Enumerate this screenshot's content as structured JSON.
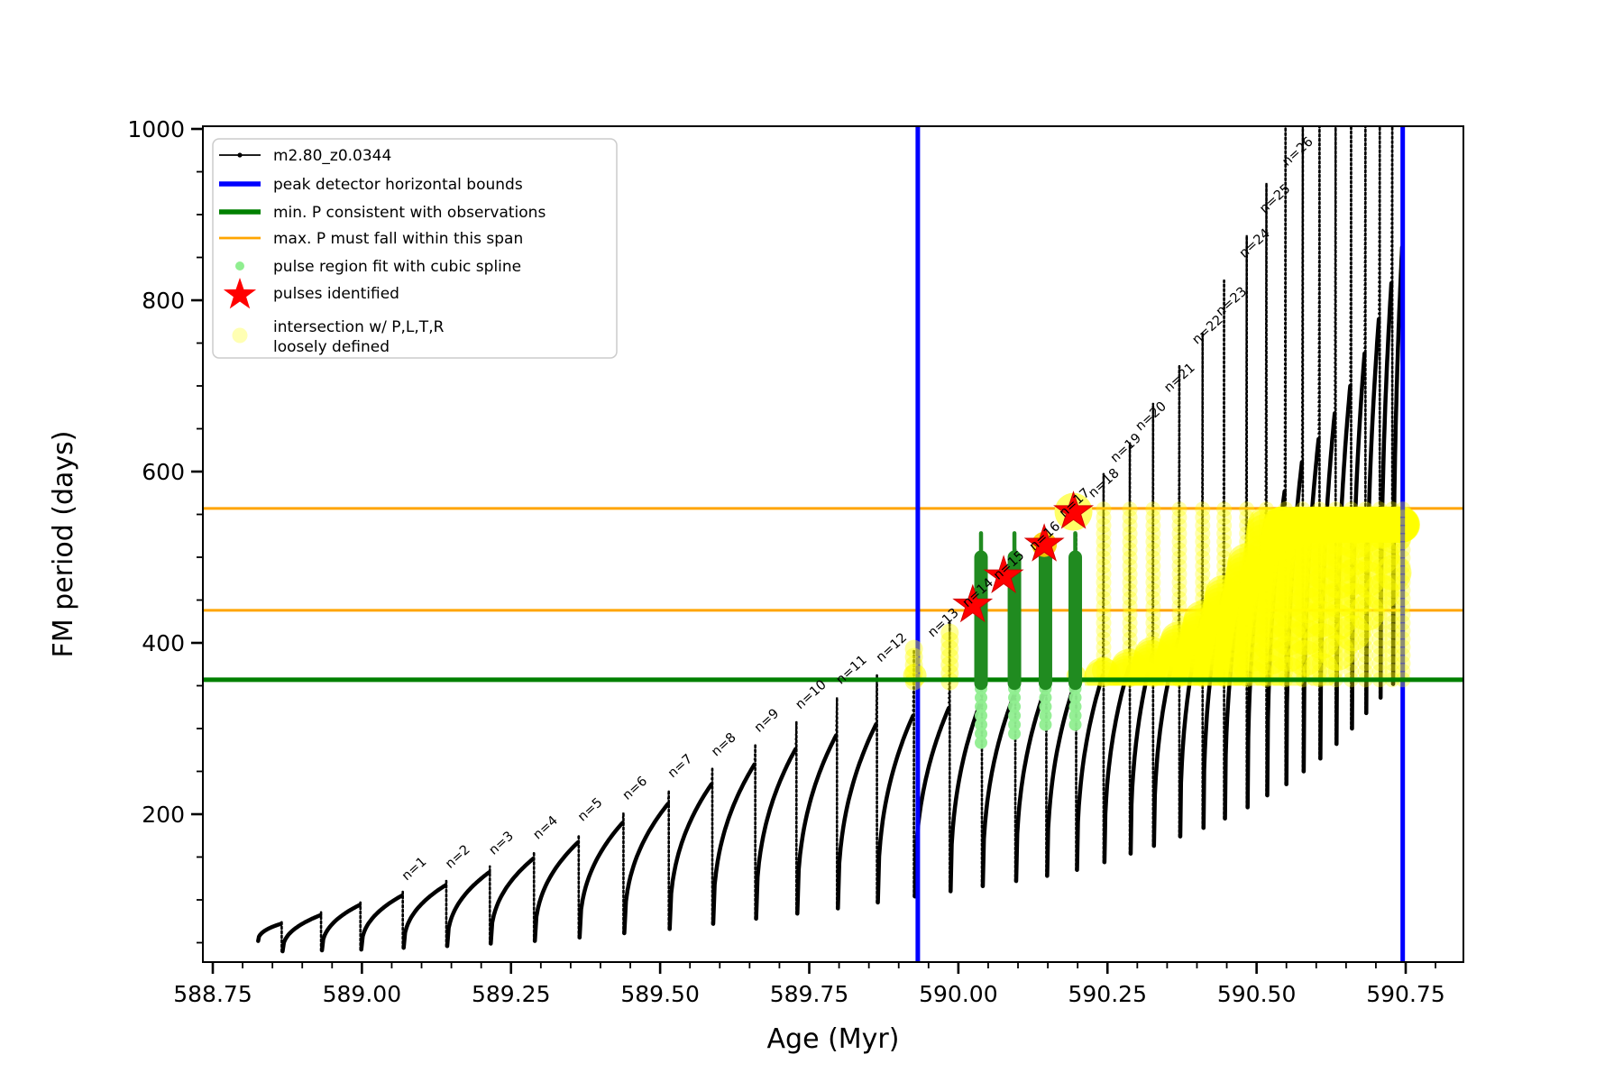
{
  "chart_data": {
    "type": "line",
    "title": "",
    "xlabel": "Age (Myr)",
    "ylabel": "FM period (days)",
    "xlim": [
      588.733,
      590.846
    ],
    "ylim": [
      27,
      1003
    ],
    "x_major_ticks": [
      "588.75",
      "589.00",
      "589.25",
      "589.50",
      "589.75",
      "590.00",
      "590.25",
      "590.50",
      "590.75"
    ],
    "x_major_values": [
      588.75,
      589.0,
      589.25,
      589.5,
      589.75,
      590.0,
      590.25,
      590.5,
      590.75
    ],
    "x_minor_step": 0.05,
    "y_major_ticks": [
      "200",
      "400",
      "600",
      "800",
      "1000"
    ],
    "y_major_values": [
      200,
      400,
      600,
      800,
      1000
    ],
    "y_minor_step": 50,
    "series_label": "m2.80_z0.0344",
    "peak_detector_bounds_x": [
      589.932,
      590.745
    ],
    "min_P_line": 357,
    "max_P_span": [
      438,
      557
    ],
    "pulses": [
      {
        "n": 0,
        "age": 588.864,
        "start": 588.826,
        "min": 52,
        "bump": 72,
        "tip": 76
      },
      {
        "n": 0,
        "age": 588.93,
        "min": 40,
        "bump": 82,
        "tip": 86
      },
      {
        "n": 0,
        "age": 588.996,
        "min": 41,
        "bump": 94,
        "tip": 98
      },
      {
        "n": 1,
        "age": 589.067,
        "min": 42,
        "bump": 105,
        "tip": 110
      },
      {
        "n": 2,
        "age": 589.14,
        "min": 44,
        "bump": 117,
        "tip": 123
      },
      {
        "n": 3,
        "age": 589.213,
        "min": 46,
        "bump": 132,
        "tip": 139
      },
      {
        "n": 4,
        "age": 589.287,
        "min": 49,
        "bump": 148,
        "tip": 156
      },
      {
        "n": 5,
        "age": 589.362,
        "min": 52,
        "bump": 167,
        "tip": 177
      },
      {
        "n": 6,
        "age": 589.437,
        "min": 56,
        "bump": 190,
        "tip": 202
      },
      {
        "n": 7,
        "age": 589.513,
        "min": 61,
        "bump": 212,
        "tip": 228
      },
      {
        "n": 8,
        "age": 589.586,
        "min": 66,
        "bump": 235,
        "tip": 253
      },
      {
        "n": 9,
        "age": 589.658,
        "min": 72,
        "bump": 258,
        "tip": 281
      },
      {
        "n": 10,
        "age": 589.727,
        "min": 78,
        "bump": 276,
        "tip": 308
      },
      {
        "n": 11,
        "age": 589.795,
        "min": 84,
        "bump": 292,
        "tip": 337
      },
      {
        "n": 12,
        "age": 589.862,
        "min": 90,
        "bump": 305,
        "tip": 362
      },
      {
        "n": 13,
        "age": 589.924,
        "min": 97,
        "bump": 315,
        "tip": 393
      },
      {
        "n": 14,
        "age": 589.984,
        "min": 104,
        "bump": 324,
        "tip": 425
      },
      {
        "n": 15,
        "age": 590.038,
        "min": 110,
        "bump": 332,
        "tip": 500
      },
      {
        "n": 16,
        "age": 590.094,
        "min": 116,
        "bump": 340,
        "tip": 510
      },
      {
        "n": 17,
        "age": 590.146,
        "min": 122,
        "bump": 347,
        "tip": 518
      },
      {
        "n": 18,
        "age": 590.196,
        "min": 128,
        "bump": 354,
        "tip": 528
      },
      {
        "n": 19,
        "age": 590.242,
        "min": 135,
        "bump": 362,
        "tip": 597
      },
      {
        "n": 20,
        "age": 590.286,
        "min": 144,
        "bump": 372,
        "tip": 633
      },
      {
        "n": 21,
        "age": 590.325,
        "min": 154,
        "bump": 386,
        "tip": 679
      },
      {
        "n": 22,
        "age": 590.369,
        "min": 163,
        "bump": 404,
        "tip": 723
      },
      {
        "n": 23,
        "age": 590.408,
        "min": 174,
        "bump": 428,
        "tip": 762
      },
      {
        "n": 24,
        "age": 590.444,
        "min": 184,
        "bump": 458,
        "tip": 823
      },
      {
        "n": 25,
        "age": 590.482,
        "min": 195,
        "bump": 495,
        "tip": 876
      },
      {
        "n": 26,
        "age": 590.515,
        "min": 208,
        "bump": 540,
        "tip": 937
      },
      {
        "n": 0,
        "age": 590.547,
        "min": 222,
        "bump": 577,
        "tip": 1100
      },
      {
        "n": 0,
        "age": 590.576,
        "min": 235,
        "bump": 611,
        "tip": 1100
      },
      {
        "n": 0,
        "age": 590.604,
        "min": 250,
        "bump": 638,
        "tip": 1100
      },
      {
        "n": 0,
        "age": 590.631,
        "min": 265,
        "bump": 668,
        "tip": 1100
      },
      {
        "n": 0,
        "age": 590.657,
        "min": 282,
        "bump": 700,
        "tip": 1100
      },
      {
        "n": 0,
        "age": 590.681,
        "min": 300,
        "bump": 738,
        "tip": 1100
      },
      {
        "n": 0,
        "age": 590.705,
        "min": 318,
        "bump": 778,
        "tip": 1100
      },
      {
        "n": 0,
        "age": 590.726,
        "min": 336,
        "bump": 820,
        "tip": 1100
      },
      {
        "n": 0,
        "age": 590.744,
        "min": 352,
        "bump": 862,
        "tip": 1100
      }
    ],
    "pulse_labels": [
      {
        "n": "n=1",
        "age": 589.075,
        "period": 122
      },
      {
        "n": "n=2",
        "age": 589.148,
        "period": 136
      },
      {
        "n": "n=3",
        "age": 589.221,
        "period": 152
      },
      {
        "n": "n=4",
        "age": 589.295,
        "period": 170
      },
      {
        "n": "n=5",
        "age": 589.37,
        "period": 191
      },
      {
        "n": "n=6",
        "age": 589.445,
        "period": 216
      },
      {
        "n": "n=7",
        "age": 589.521,
        "period": 242
      },
      {
        "n": "n=8",
        "age": 589.594,
        "period": 267
      },
      {
        "n": "n=9",
        "age": 589.666,
        "period": 295
      },
      {
        "n": "n=10",
        "age": 589.735,
        "period": 322
      },
      {
        "n": "n=11",
        "age": 589.803,
        "period": 351
      },
      {
        "n": "n=12",
        "age": 589.87,
        "period": 377
      },
      {
        "n": "n=13",
        "age": 589.957,
        "period": 406
      },
      {
        "n": "n=14",
        "age": 590.015,
        "period": 441
      },
      {
        "n": "n=15",
        "age": 590.067,
        "period": 473
      },
      {
        "n": "n=16",
        "age": 590.127,
        "period": 507
      },
      {
        "n": "n=17",
        "age": 590.177,
        "period": 546
      },
      {
        "n": "n=18",
        "age": 590.226,
        "period": 569
      },
      {
        "n": "n=19",
        "age": 590.263,
        "period": 610
      },
      {
        "n": "n=20",
        "age": 590.305,
        "period": 647
      },
      {
        "n": "n=21",
        "age": 590.353,
        "period": 692
      },
      {
        "n": "n=22",
        "age": 590.4,
        "period": 748
      },
      {
        "n": "n=23",
        "age": 590.44,
        "period": 781
      },
      {
        "n": "n=24",
        "age": 590.479,
        "period": 849
      },
      {
        "n": "n=25",
        "age": 590.513,
        "period": 901
      },
      {
        "n": "n=26",
        "age": 590.551,
        "period": 956
      }
    ],
    "stars": [
      {
        "age": 590.024,
        "period": 444
      },
      {
        "age": 590.076,
        "period": 478
      },
      {
        "age": 590.144,
        "period": 515
      },
      {
        "age": 590.193,
        "period": 553
      }
    ],
    "star_glows": [
      {
        "star_index": 2,
        "radius": 14,
        "color": "#ffcc00",
        "opacity": 0.9
      },
      {
        "star_index": 3,
        "radius": 21,
        "color": "#ffff55",
        "opacity": 0.9
      }
    ],
    "spline_bars": {
      "ages": [
        590.038,
        590.094,
        590.146,
        590.196
      ],
      "band_bottom": 353,
      "band_top": 500,
      "thin_tip": 528,
      "lightgreen_below_to": [
        278,
        288,
        296,
        303
      ]
    },
    "yellow_chains_explicit": [
      {
        "age": 589.924,
        "p0": 348,
        "p1": 393
      },
      {
        "age": 589.984,
        "p0": 348,
        "p1": 412
      }
    ],
    "yellow_chain_band": {
      "from_age": 590.24,
      "p0": 352,
      "p1": 556
    },
    "yellow_blobs_extra": [
      {
        "age": 589.927,
        "period": 362,
        "r": 13
      },
      {
        "age": 590.198,
        "period": 362,
        "r": 11
      },
      {
        "age": 590.245,
        "period": 368,
        "r": 14
      }
    ],
    "yellow_mass": {
      "from_age": 590.24,
      "p_floor": 356,
      "p_cap": 538,
      "blob_r": 20
    }
  },
  "legend": {
    "items": [
      {
        "key": "track",
        "label": "m2.80_z0.0344",
        "handle": "line-dot",
        "color": "#000000"
      },
      {
        "key": "peak-bounds",
        "label": "peak detector horizontal bounds",
        "handle": "thick-line",
        "color": "#0000ff"
      },
      {
        "key": "min-p",
        "label": "min. P consistent with observations",
        "handle": "thick-line",
        "color": "#008000"
      },
      {
        "key": "max-p",
        "label": "max. P must fall within this span",
        "handle": "line",
        "color": "#ffa500"
      },
      {
        "key": "pulse-region",
        "label": "pulse region fit with cubic spline",
        "handle": "small-dot",
        "color": "#90ee90"
      },
      {
        "key": "pulses",
        "label": "pulses identified",
        "handle": "star",
        "color": "#ff0000"
      },
      {
        "key": "intersection",
        "label": "intersection w/ P,L,T,R\nloosely defined",
        "handle": "pale-dot",
        "color": "#ffff99"
      }
    ]
  },
  "colors": {
    "curve": "#000000",
    "blue_bound": "#0000ff",
    "green_line": "#008000",
    "orange_line": "#ffa500",
    "bar_green": "#208b20",
    "light_green": "#90ee90",
    "yellow": "#ffff00",
    "star_red": "#ff0000",
    "axis": "#000000",
    "legend_border": "#cccccc"
  }
}
